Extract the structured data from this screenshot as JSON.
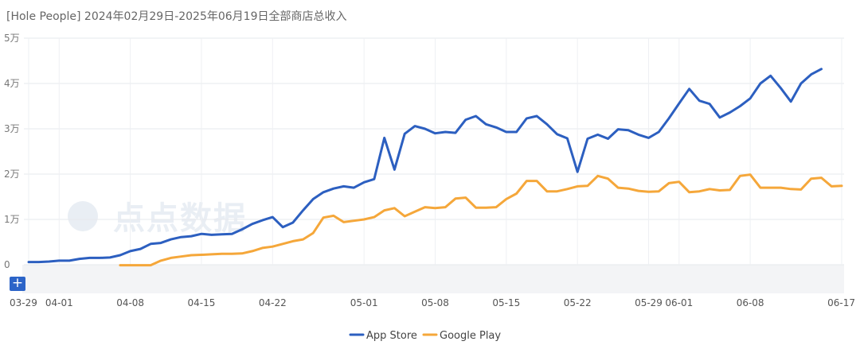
{
  "title": "[Hole People] 2024年02月29日-2025年06月19日全部商店总收入",
  "watermark": "点点数据",
  "expand_button": "+",
  "chart_data": {
    "type": "line",
    "title": "[Hole People] 2024年02月29日-2025年06月19日全部商店总收入",
    "xlabel": "",
    "ylabel": "",
    "ylim": [
      0,
      50000
    ],
    "yticks": [
      {
        "value": 0,
        "label": "0"
      },
      {
        "value": 10000,
        "label": "1万"
      },
      {
        "value": 20000,
        "label": "2万"
      },
      {
        "value": 30000,
        "label": "3万"
      },
      {
        "value": 40000,
        "label": "4万"
      },
      {
        "value": 50000,
        "label": "5万"
      }
    ],
    "xlim": [
      0,
      80
    ],
    "xticks": [
      {
        "pos": 0,
        "label": "03-29"
      },
      {
        "pos": 3,
        "label": "04-01"
      },
      {
        "pos": 10,
        "label": "04-08"
      },
      {
        "pos": 17,
        "label": "04-15"
      },
      {
        "pos": 24,
        "label": "04-22"
      },
      {
        "pos": 33,
        "label": "05-01"
      },
      {
        "pos": 40,
        "label": "05-08"
      },
      {
        "pos": 47,
        "label": "05-15"
      },
      {
        "pos": 54,
        "label": "05-22"
      },
      {
        "pos": 61,
        "label": "05-29"
      },
      {
        "pos": 64,
        "label": "06-01"
      },
      {
        "pos": 71,
        "label": "06-08"
      },
      {
        "pos": 80,
        "label": "06-17"
      }
    ],
    "grid": true,
    "legend_position": "bottom-center",
    "series": [
      {
        "name": "App Store",
        "color": "#2c5fc0",
        "start": 0,
        "values": [
          600,
          600,
          700,
          900,
          900,
          1300,
          1500,
          1500,
          1600,
          2100,
          3000,
          3500,
          4600,
          4800,
          5600,
          6100,
          6300,
          6800,
          6600,
          6700,
          6800,
          7800,
          9000,
          9800,
          10500,
          8300,
          9300,
          12000,
          14500,
          16000,
          16800,
          17300,
          17000,
          18200,
          18900,
          28000,
          21000,
          28900,
          30600,
          30000,
          29000,
          29300,
          29100,
          32000,
          32800,
          31000,
          30300,
          29300,
          29300,
          32300,
          32800,
          31000,
          28800,
          27900,
          20500,
          27800,
          28700,
          27800,
          29900,
          29700,
          28700,
          28000,
          29300,
          32300,
          35600,
          38800,
          36200,
          35500,
          32500,
          33600,
          35000,
          36700,
          40000,
          41700,
          39000,
          36000,
          40000,
          42000,
          43200
        ]
      },
      {
        "name": "Google Play",
        "color": "#f5a73a",
        "start": 9,
        "values": [
          -100,
          -100,
          -100,
          -100,
          900,
          1500,
          1800,
          2100,
          2200,
          2300,
          2400,
          2400,
          2500,
          3000,
          3700,
          4000,
          4600,
          5200,
          5600,
          7000,
          10400,
          10800,
          9400,
          9700,
          10000,
          10500,
          12000,
          12500,
          10700,
          11700,
          12700,
          12500,
          12700,
          14600,
          14800,
          12600,
          12600,
          12700,
          14500,
          15700,
          18500,
          18500,
          16200,
          16200,
          16700,
          17300,
          17400,
          19600,
          19000,
          17000,
          16800,
          16300,
          16100,
          16200,
          18000,
          18300,
          16000,
          16200,
          16700,
          16400,
          16500,
          19600,
          19900,
          17000,
          17000,
          17000,
          16700,
          16600,
          19000,
          19200,
          17300,
          17400
        ]
      }
    ]
  }
}
